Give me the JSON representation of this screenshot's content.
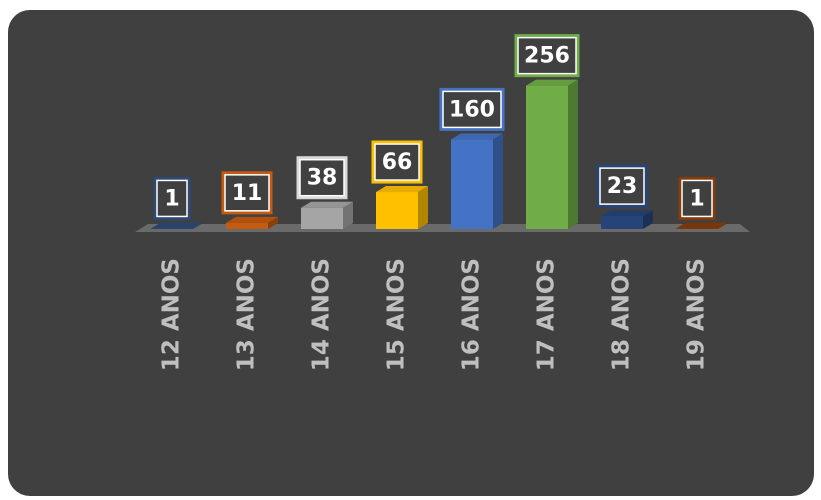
{
  "chart_data": {
    "type": "bar",
    "categories": [
      "12 ANOS",
      "13 ANOS",
      "14 ANOS",
      "15 ANOS",
      "16 ANOS",
      "17 ANOS",
      "18 ANOS",
      "19 ANOS"
    ],
    "values": [
      1,
      11,
      38,
      66,
      160,
      256,
      23,
      1
    ],
    "colors": [
      "#2e4a78",
      "#c55a11",
      "#a5a5a5",
      "#ffc000",
      "#4472c4",
      "#70ad47",
      "#264478",
      "#843c0c"
    ]
  }
}
